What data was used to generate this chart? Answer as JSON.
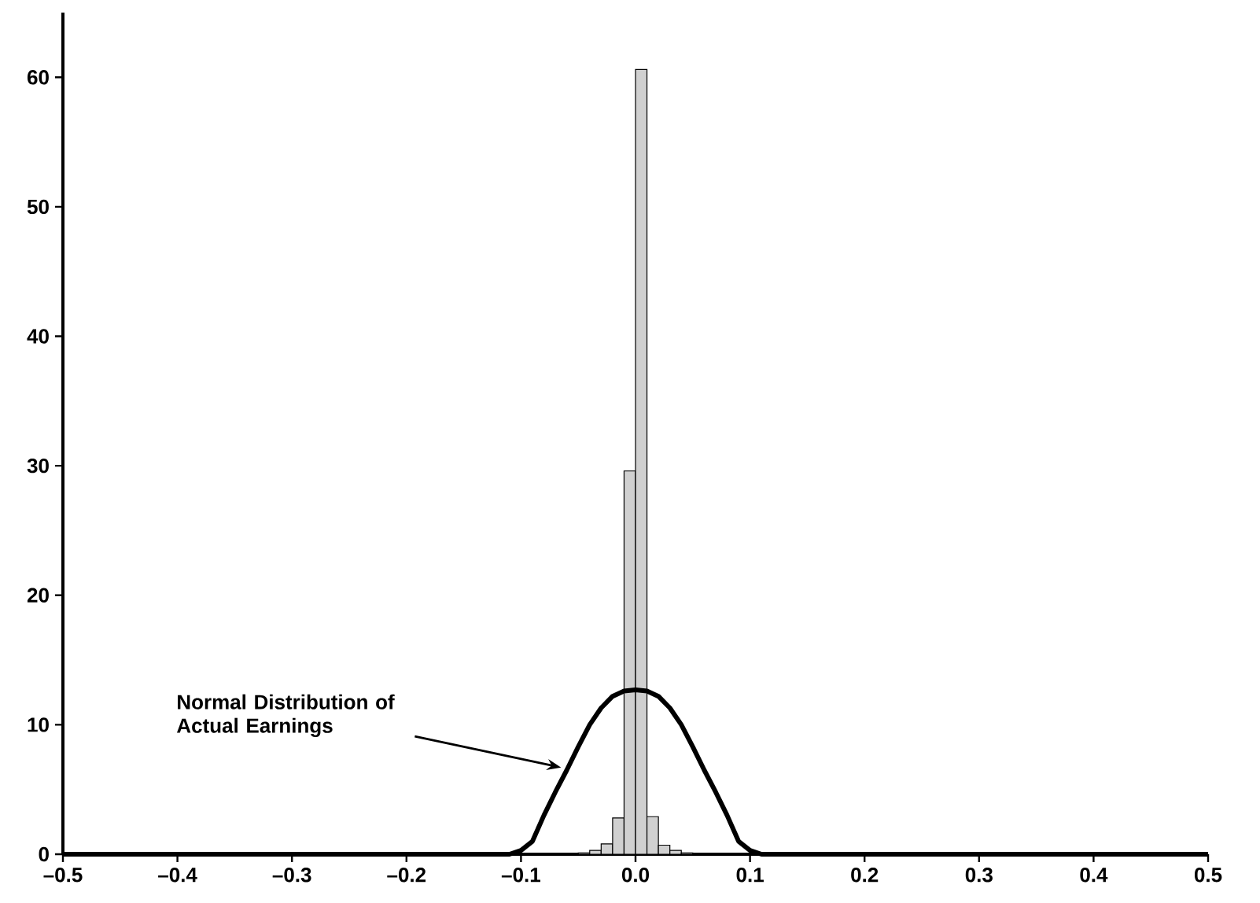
{
  "chart_data": {
    "type": "histogram",
    "bins": [
      -0.05,
      -0.04,
      -0.03,
      -0.02,
      -0.01,
      0,
      0.01,
      0.02,
      0.03,
      0.04,
      0.05
    ],
    "values": [
      0.1,
      0.3,
      0.8,
      2.8,
      29.6,
      60.6,
      2.9,
      0.7,
      0.3,
      0.1
    ],
    "color": "#d0d0d0",
    "series": [
      {
        "type": "line",
        "color": "#000000",
        "x": [
          -0.5,
          -0.11,
          -0.1,
          -0.09,
          -0.08,
          -0.07,
          -0.06,
          -0.05,
          -0.04,
          -0.03,
          -0.02,
          -0.01,
          0,
          0.01,
          0.02,
          0.03,
          0.04,
          0.05,
          0.06,
          0.07,
          0.08,
          0.09,
          0.1,
          0.11,
          0.5
        ],
        "values": [
          0,
          0,
          0.3,
          1.0,
          3.0,
          4.8,
          6.5,
          8.3,
          10.0,
          11.3,
          12.2,
          12.6,
          12.7,
          12.6,
          12.2,
          11.3,
          10.0,
          8.3,
          6.5,
          4.8,
          3.0,
          1.0,
          0.3,
          0,
          0
        ]
      }
    ],
    "xlim": [
      -0.5,
      0.5
    ],
    "xticks": [
      {
        "value": -0.5,
        "label": "–0.5"
      },
      {
        "value": -0.4,
        "label": "–0.4"
      },
      {
        "value": -0.3,
        "label": "–0.3"
      },
      {
        "value": -0.2,
        "label": "–0.2"
      },
      {
        "value": -0.1,
        "label": "–0.1"
      },
      {
        "value": 0,
        "label": "0.0"
      },
      {
        "value": 0.1,
        "label": "0.1"
      },
      {
        "value": 0.2,
        "label": "0.2"
      },
      {
        "value": 0.3,
        "label": "0.3"
      },
      {
        "value": 0.4,
        "label": "0.4"
      },
      {
        "value": 0.5,
        "label": "0.5"
      }
    ],
    "ylim": [
      0,
      65
    ],
    "yticks": [
      0,
      10,
      20,
      30,
      40,
      50,
      60
    ],
    "annotations": [
      {
        "text": "Normal Distribution of Actual Earnings",
        "x": -0.065,
        "y": 6.7
      }
    ]
  }
}
